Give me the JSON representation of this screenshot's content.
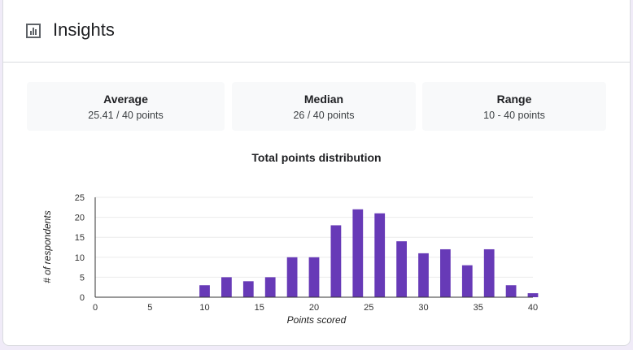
{
  "header": {
    "title": "Insights"
  },
  "stats": [
    {
      "label": "Average",
      "value": "25.41 / 40 points"
    },
    {
      "label": "Median",
      "value": "26 / 40 points"
    },
    {
      "label": "Range",
      "value": "10 - 40 points"
    }
  ],
  "colors": {
    "bar": "#673ab7",
    "grid": "#ebebeb",
    "axis": "#333333"
  },
  "chart_data": {
    "type": "bar",
    "title": "Total points distribution",
    "xlabel": "Points scored",
    "ylabel": "# of respondents",
    "x": [
      10,
      12,
      14,
      16,
      18,
      20,
      22,
      24,
      26,
      28,
      30,
      32,
      34,
      36,
      38,
      40
    ],
    "values": [
      3,
      5,
      4,
      5,
      10,
      10,
      18,
      22,
      21,
      14,
      11,
      12,
      8,
      12,
      3,
      1
    ],
    "xlim": [
      0,
      40
    ],
    "ylim": [
      0,
      25
    ],
    "xticks": [
      0,
      5,
      10,
      15,
      20,
      25,
      30,
      35,
      40
    ],
    "yticks": [
      0,
      5,
      10,
      15,
      20,
      25
    ],
    "grid": true
  }
}
